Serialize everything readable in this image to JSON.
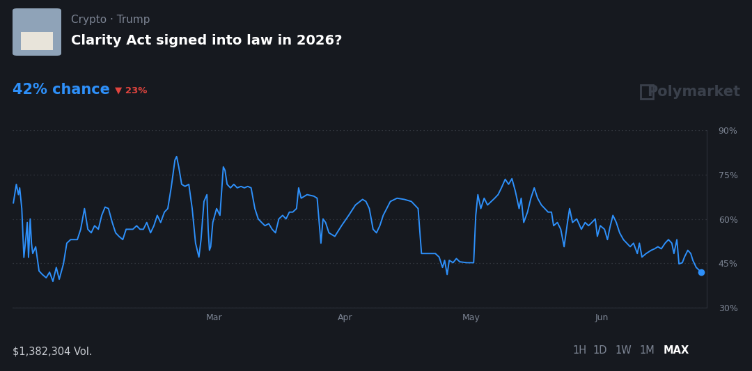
{
  "chart_data": {
    "type": "line",
    "category": "Crypto · Trump",
    "title": "Clarity Act signed into law in 2026?",
    "headline": "42% chance",
    "change": "▼ 23%",
    "brand": "Polymarket",
    "volume": "$1,382,304 Vol.",
    "range_buttons": [
      "1H",
      "1D",
      "1W",
      "1M",
      "MAX"
    ],
    "selected_range": "MAX",
    "color": "#2e90fa",
    "x": [
      11.2,
      11.9,
      12.4,
      12.7,
      13.2,
      13.7,
      14.2,
      14.5,
      14.8,
      15.2,
      15.5,
      15.8,
      16.5,
      17.3,
      18.1,
      19.0,
      19.8,
      20.6,
      21.4,
      22.1,
      23.1,
      23.9,
      24.8,
      26.4,
      27.2,
      28.1,
      28.9,
      29.7,
      30.5,
      31.4,
      32.2,
      33.0,
      33.8,
      34.7,
      35.5,
      36.3,
      37.2,
      38.0,
      39.6,
      40.5,
      41.3,
      42.1,
      42.9,
      43.8,
      44.6,
      45.4,
      46.2,
      47.1,
      47.9,
      48.7,
      49.6,
      50.0,
      50.5,
      51.2,
      52.0,
      52.9,
      53.7,
      54.5,
      55.3,
      55.8,
      56.5,
      57.2,
      57.5,
      57.8,
      58.1,
      58.6,
      59.5,
      60.3,
      61.1,
      61.5,
      62.0,
      62.8,
      63.6,
      64.4,
      65.3,
      66.1,
      66.9,
      67.7,
      68.6,
      69.4,
      70.2,
      71.0,
      71.9,
      72.7,
      73.5,
      74.3,
      75.2,
      76.0,
      76.8,
      77.6,
      78.5,
      79.0,
      79.6,
      81.0,
      82.6,
      83.4,
      84.3,
      84.8,
      85.4,
      86.2,
      87.6,
      89.2,
      90.9,
      92.5,
      94.2,
      95.0,
      95.8,
      96.7,
      97.5,
      98.3,
      99.1,
      100.8,
      102.4,
      104.1,
      105.8,
      107.4,
      108.2,
      109.9,
      111.5,
      112.4,
      113.2,
      113.7,
      114.3,
      114.8,
      115.7,
      116.5,
      117.3,
      119.0,
      120.6,
      121.1,
      121.6,
      122.3,
      123.1,
      123.9,
      124.8,
      125.6,
      126.4,
      127.2,
      128.1,
      128.9,
      129.7,
      130.5,
      131.4,
      131.9,
      132.5,
      133.4,
      134.2,
      135.0,
      135.8,
      136.7,
      137.5,
      138.3,
      139.1,
      139.6,
      140.5,
      141.3,
      142.1,
      142.9,
      143.4,
      144.1,
      145.1,
      146.2,
      147.1,
      147.9,
      148.7,
      149.5,
      150.0,
      150.7,
      151.7,
      152.4,
      153.0,
      153.7,
      154.5,
      155.3,
      156.2,
      157.0,
      157.8,
      158.6,
      159.5,
      160.0,
      160.6,
      161.6,
      162.8,
      163.6,
      164.4,
      165.2,
      166.1,
      166.9,
      167.7,
      168.2,
      168.9,
      169.4,
      170.2,
      170.7,
      171.5,
      172.2,
      172.7,
      173.5,
      174.7
    ],
    "values": [
      65.4,
      71.7,
      68.2,
      70.5,
      63.5,
      47.0,
      54.0,
      58.8,
      47.0,
      60.0,
      51.8,
      48.3,
      50.6,
      42.4,
      41.2,
      40.1,
      42.0,
      38.9,
      43.6,
      39.6,
      44.8,
      51.8,
      53.0,
      53.0,
      56.5,
      63.5,
      56.5,
      55.3,
      57.7,
      56.5,
      61.2,
      64.0,
      63.5,
      58.8,
      55.3,
      54.1,
      53.0,
      56.5,
      56.5,
      57.7,
      56.5,
      56.5,
      58.8,
      55.3,
      57.7,
      61.2,
      58.8,
      62.3,
      63.5,
      70.5,
      79.9,
      81.1,
      77.6,
      71.7,
      71.0,
      71.7,
      63.5,
      51.8,
      47.1,
      53.0,
      65.9,
      68.2,
      56.5,
      49.4,
      50.6,
      58.8,
      63.5,
      61.2,
      77.6,
      76.4,
      71.7,
      70.5,
      71.7,
      70.5,
      71.0,
      70.5,
      71.0,
      70.5,
      63.5,
      60.0,
      58.8,
      57.7,
      58.4,
      56.5,
      55.3,
      60.0,
      61.2,
      60.0,
      62.3,
      62.3,
      63.5,
      70.5,
      67.0,
      68.2,
      67.7,
      67.0,
      51.8,
      60.0,
      58.8,
      55.3,
      54.1,
      57.7,
      61.2,
      64.7,
      66.6,
      65.9,
      63.5,
      56.5,
      55.3,
      57.7,
      61.2,
      65.9,
      67.0,
      66.6,
      65.9,
      63.5,
      48.3,
      48.3,
      48.3,
      47.1,
      43.6,
      46.0,
      41.2,
      46.0,
      45.2,
      46.6,
      45.5,
      45.2,
      45.2,
      61.2,
      68.2,
      63.5,
      67.0,
      64.7,
      65.9,
      67.0,
      68.2,
      70.5,
      73.4,
      71.7,
      73.6,
      69.4,
      63.5,
      67.0,
      58.8,
      62.3,
      67.0,
      70.5,
      67.0,
      64.7,
      63.5,
      62.3,
      62.3,
      57.7,
      58.8,
      56.5,
      50.6,
      58.8,
      63.5,
      58.8,
      60.0,
      56.5,
      58.8,
      57.7,
      58.8,
      60.0,
      54.1,
      57.7,
      56.5,
      53.0,
      57.2,
      61.2,
      58.8,
      55.3,
      53.0,
      51.8,
      50.6,
      51.8,
      48.3,
      51.8,
      47.1,
      48.3,
      49.4,
      49.9,
      50.6,
      49.9,
      51.8,
      53.0,
      51.8,
      48.3,
      53.0,
      44.8,
      45.2,
      47.1,
      49.4,
      48.3,
      46.0,
      43.6,
      42.0
    ],
    "xlim": [
      11,
      176
    ],
    "xticks": [
      {
        "value": 59,
        "label": "Mar"
      },
      {
        "value": 90,
        "label": "Apr"
      },
      {
        "value": 120,
        "label": "May"
      },
      {
        "value": 151,
        "label": "Jun"
      }
    ],
    "ylim": [
      30,
      90
    ],
    "yticks": [
      {
        "value": 30,
        "label": "30%"
      },
      {
        "value": 45,
        "label": "45%"
      },
      {
        "value": 60,
        "label": "60%"
      },
      {
        "value": 75,
        "label": "75%"
      },
      {
        "value": 90,
        "label": "90%"
      }
    ],
    "grid": true
  }
}
